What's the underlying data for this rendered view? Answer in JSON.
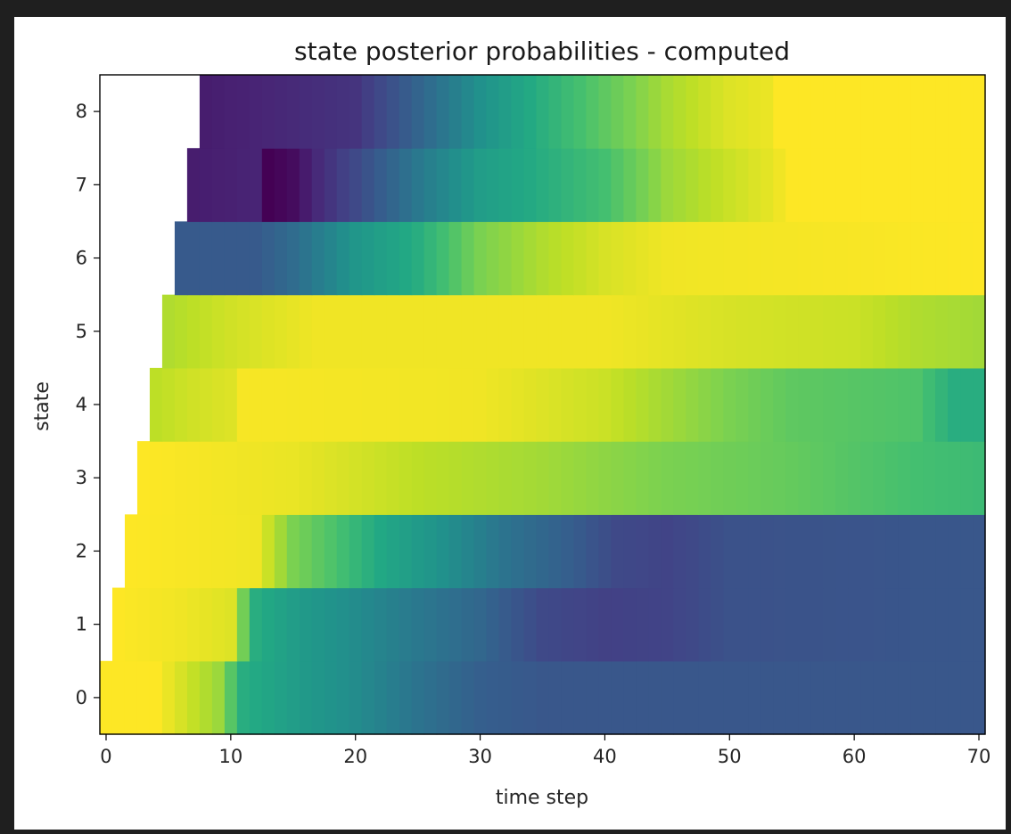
{
  "chart_data": {
    "type": "heatmap",
    "title": "state posterior probabilities - computed",
    "xlabel": "time step",
    "ylabel": "state",
    "x_ticks": [
      0,
      10,
      20,
      30,
      40,
      50,
      60,
      70
    ],
    "y_ticks": [
      0,
      1,
      2,
      3,
      4,
      5,
      6,
      7,
      8
    ],
    "xlim": [
      -0.5,
      70.5
    ],
    "ylim": [
      -0.5,
      8.5
    ],
    "colormap": "viridis",
    "grid": false,
    "start_steps": [
      0,
      1,
      2,
      3,
      4,
      5,
      6,
      7,
      8
    ],
    "rows": [
      {
        "state": 0,
        "knots": [
          [
            0,
            1.0
          ],
          [
            4,
            1.0
          ],
          [
            9,
            0.85
          ],
          [
            11,
            0.62
          ],
          [
            15,
            0.55
          ],
          [
            20,
            0.48
          ],
          [
            25,
            0.38
          ],
          [
            30,
            0.3
          ],
          [
            35,
            0.27
          ],
          [
            45,
            0.27
          ],
          [
            70,
            0.27
          ]
        ]
      },
      {
        "state": 1,
        "knots": [
          [
            1,
            1.0
          ],
          [
            6,
            0.98
          ],
          [
            10,
            0.95
          ],
          [
            12,
            0.62
          ],
          [
            15,
            0.55
          ],
          [
            20,
            0.48
          ],
          [
            25,
            0.4
          ],
          [
            30,
            0.33
          ],
          [
            35,
            0.22
          ],
          [
            40,
            0.19
          ],
          [
            45,
            0.2
          ],
          [
            50,
            0.25
          ],
          [
            70,
            0.27
          ]
        ]
      },
      {
        "state": 2,
        "knots": [
          [
            2,
            1.0
          ],
          [
            12,
            0.98
          ],
          [
            15,
            0.8
          ],
          [
            18,
            0.72
          ],
          [
            22,
            0.6
          ],
          [
            27,
            0.5
          ],
          [
            32,
            0.38
          ],
          [
            37,
            0.3
          ],
          [
            41,
            0.22
          ],
          [
            45,
            0.2
          ],
          [
            50,
            0.25
          ],
          [
            70,
            0.27
          ]
        ]
      },
      {
        "state": 3,
        "knots": [
          [
            3,
            1.0
          ],
          [
            15,
            0.97
          ],
          [
            25,
            0.9
          ],
          [
            35,
            0.86
          ],
          [
            45,
            0.8
          ],
          [
            55,
            0.76
          ],
          [
            65,
            0.7
          ],
          [
            70,
            0.68
          ]
        ]
      },
      {
        "state": 4,
        "knots": [
          [
            4,
            0.9
          ],
          [
            7,
            0.93
          ],
          [
            10,
            0.95
          ],
          [
            11,
            0.99
          ],
          [
            30,
            0.98
          ],
          [
            40,
            0.92
          ],
          [
            50,
            0.8
          ],
          [
            55,
            0.75
          ],
          [
            65,
            0.72
          ],
          [
            68,
            0.62
          ],
          [
            70,
            0.62
          ]
        ]
      },
      {
        "state": 5,
        "knots": [
          [
            5,
            0.88
          ],
          [
            10,
            0.93
          ],
          [
            17,
            0.98
          ],
          [
            40,
            0.98
          ],
          [
            50,
            0.94
          ],
          [
            60,
            0.92
          ],
          [
            65,
            0.88
          ],
          [
            70,
            0.86
          ]
        ]
      },
      {
        "state": 6,
        "knots": [
          [
            6,
            0.28
          ],
          [
            12,
            0.28
          ],
          [
            15,
            0.35
          ],
          [
            20,
            0.52
          ],
          [
            25,
            0.62
          ],
          [
            30,
            0.8
          ],
          [
            35,
            0.88
          ],
          [
            40,
            0.94
          ],
          [
            45,
            0.98
          ],
          [
            70,
            1.0
          ]
        ]
      },
      {
        "state": 7,
        "knots": [
          [
            7,
            0.08
          ],
          [
            12,
            0.1
          ],
          [
            13,
            0.0
          ],
          [
            15,
            0.03
          ],
          [
            17,
            0.12
          ],
          [
            20,
            0.22
          ],
          [
            25,
            0.4
          ],
          [
            30,
            0.55
          ],
          [
            35,
            0.62
          ],
          [
            40,
            0.7
          ],
          [
            42,
            0.76
          ],
          [
            45,
            0.85
          ],
          [
            50,
            0.92
          ],
          [
            53,
            0.96
          ],
          [
            55,
            1.0
          ],
          [
            70,
            1.0
          ]
        ]
      },
      {
        "state": 8,
        "knots": [
          [
            8,
            0.08
          ],
          [
            12,
            0.1
          ],
          [
            20,
            0.15
          ],
          [
            25,
            0.32
          ],
          [
            30,
            0.5
          ],
          [
            35,
            0.63
          ],
          [
            40,
            0.75
          ],
          [
            45,
            0.87
          ],
          [
            50,
            0.95
          ],
          [
            53,
            0.97
          ],
          [
            54,
            1.0
          ],
          [
            70,
            1.0
          ]
        ]
      }
    ]
  }
}
